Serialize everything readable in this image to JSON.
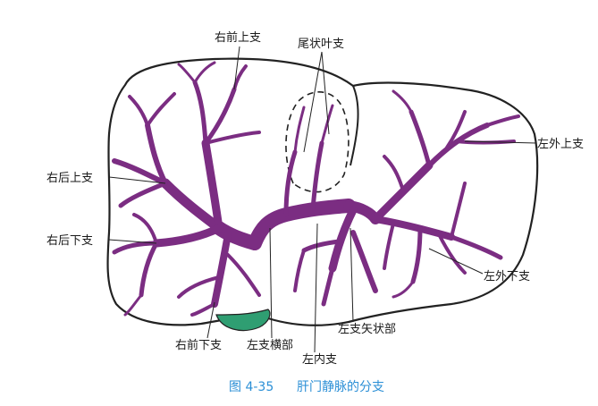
{
  "colors": {
    "vein": "#7b2d82",
    "gallbladder": "#2f9e72",
    "outline": "#222222",
    "caption": "#2b8fd6",
    "label": "#1a1a1a"
  },
  "labels": {
    "right_anterior_superior": "右前上支",
    "caudate": "尾状叶支",
    "left_lateral_superior": "左外上支",
    "right_posterior_superior": "右后上支",
    "right_posterior_inferior": "右后下支",
    "left_lateral_inferior": "左外下支",
    "left_sagittal": "左支矢状部",
    "right_anterior_inferior": "右前下支",
    "left_transverse": "左支横部",
    "left_medial": "左内支"
  },
  "caption": {
    "number": "图 4-35",
    "title": "肝门静脉的分支"
  }
}
